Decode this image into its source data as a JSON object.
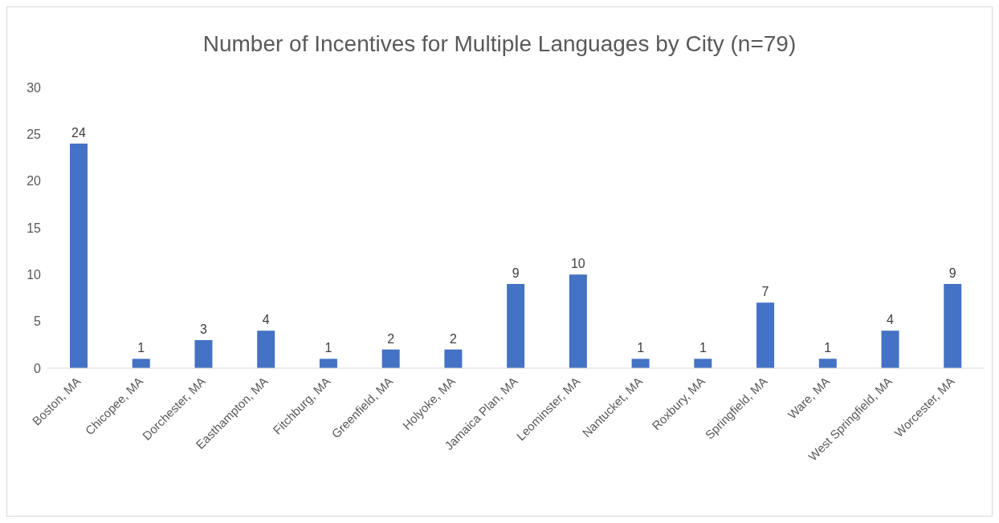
{
  "chart_data": {
    "type": "bar",
    "title": "Number of Incentives for Multiple Languages by City (n=79)",
    "categories": [
      "Boston, MA",
      "Chicopee, MA",
      "Dorchester, MA",
      "Easthampton, MA",
      "Fitchburg, MA",
      "Greenfield, MA",
      "Holyoke, MA",
      "Jamaica Plan, MA",
      "Leominster, MA",
      "Nantucket, MA",
      "Roxbury, MA",
      "Springfield, MA",
      "Ware, MA",
      "West Springfield, MA",
      "Worcester, MA"
    ],
    "values": [
      24,
      1,
      3,
      4,
      1,
      2,
      2,
      9,
      10,
      1,
      1,
      7,
      1,
      4,
      9
    ],
    "color": "#4472c4",
    "ylim": [
      0,
      30
    ],
    "yticks": [
      0,
      5,
      10,
      15,
      20,
      25,
      30
    ],
    "data_labels": true
  }
}
